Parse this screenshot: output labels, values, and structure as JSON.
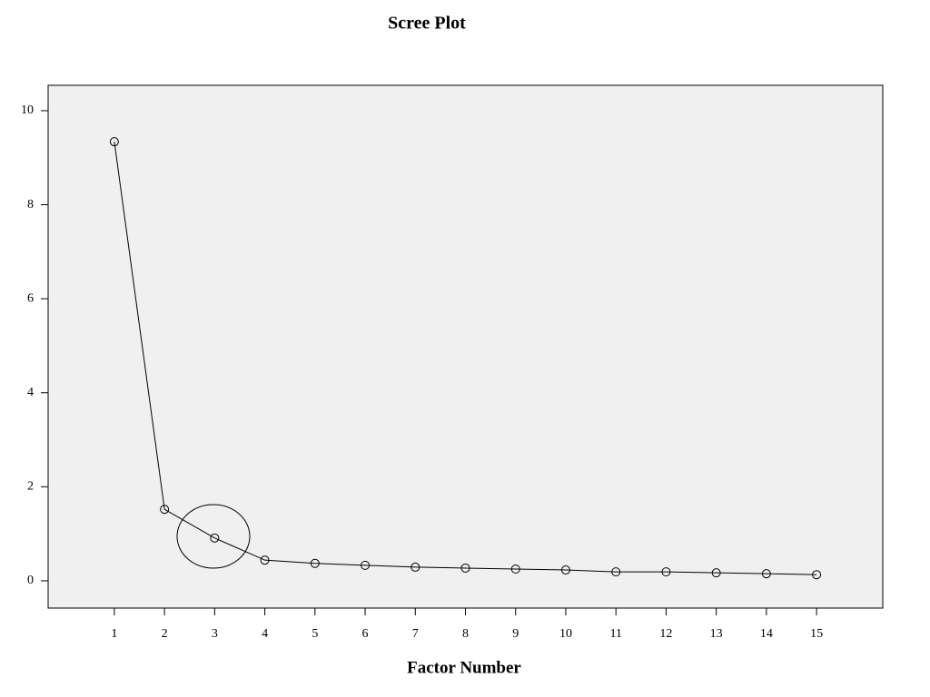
{
  "chart_data": {
    "type": "line",
    "title": "Scree Plot",
    "x_label": "Factor Number",
    "x": [
      1,
      2,
      3,
      4,
      5,
      6,
      7,
      8,
      9,
      10,
      11,
      12,
      13,
      14,
      15
    ],
    "values": [
      9.34,
      1.52,
      0.91,
      0.44,
      0.37,
      0.33,
      0.29,
      0.27,
      0.25,
      0.23,
      0.19,
      0.19,
      0.17,
      0.15,
      0.13
    ],
    "color": "#000000",
    "xlim": [
      -0.32,
      16.32
    ],
    "xticks": [
      1,
      2,
      3,
      4,
      5,
      6,
      7,
      8,
      9,
      10,
      11,
      12,
      13,
      14,
      15
    ],
    "ylim": [
      -0.58,
      10.54
    ],
    "yticks": [
      0,
      2,
      4,
      6,
      8,
      10
    ],
    "grid": false
  }
}
